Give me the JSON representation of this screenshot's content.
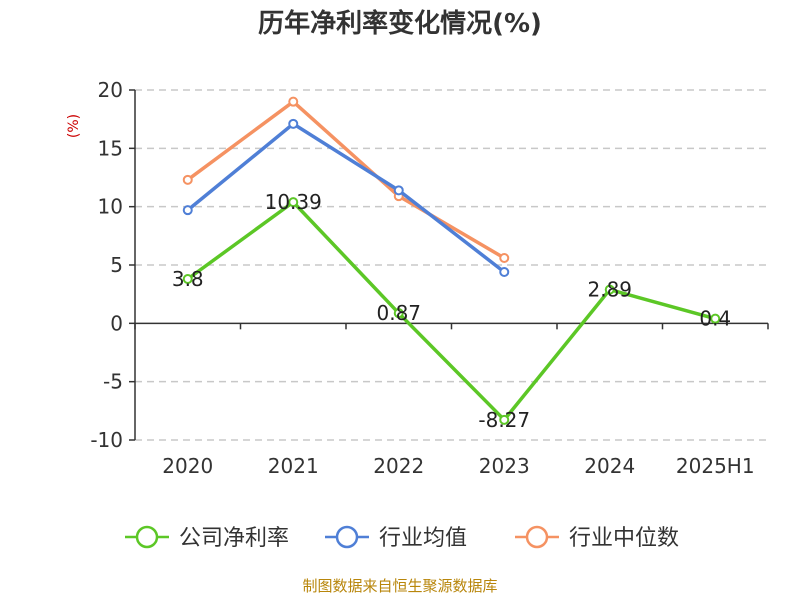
{
  "chart_data": {
    "type": "line",
    "title": "历年净利率变化情况(%)",
    "xlabel": "",
    "ylabel": "(%)",
    "categories": [
      "2020",
      "2021",
      "2022",
      "2023",
      "2024",
      "2025H1"
    ],
    "ylim": [
      -10,
      20
    ],
    "yticks": [
      "20",
      "15",
      "10",
      "5",
      "0",
      "-5",
      "-10"
    ],
    "ytick_values": [
      20,
      15,
      10,
      5,
      0,
      -5,
      -10
    ],
    "grid": true,
    "legend_position": "bottom",
    "series": [
      {
        "name": "公司净利率",
        "color": "#5cc726",
        "values": [
          3.8,
          10.39,
          0.87,
          -8.27,
          2.89,
          0.4
        ],
        "labels": [
          "3.8",
          "10.39",
          "0.87",
          "-8.27",
          "2.89",
          "0.4"
        ]
      },
      {
        "name": "行业均值",
        "color": "#4f7fd6",
        "values": [
          9.7,
          17.1,
          11.4,
          4.4,
          null,
          null
        ],
        "labels": []
      },
      {
        "name": "行业中位数",
        "color": "#f59262",
        "values": [
          12.3,
          19.0,
          10.9,
          5.6,
          null,
          null
        ],
        "labels": []
      }
    ]
  },
  "source": "制图数据来自恒生聚源数据库"
}
